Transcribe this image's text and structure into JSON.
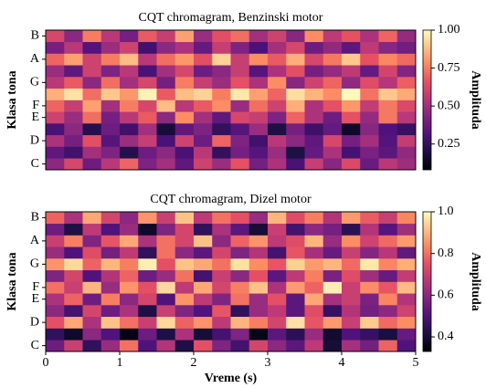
{
  "chart_data": [
    {
      "type": "heatmap",
      "title": "CQT chromagram, Benzinski motor",
      "ylabel": "Klasa tona",
      "colorbar_label": "Amplituda",
      "colormap": "magma",
      "categories": [
        "C",
        null,
        "D",
        null,
        "E",
        "F",
        null,
        "G",
        null,
        "A",
        null,
        "B"
      ],
      "xlim": [
        0,
        5
      ],
      "zlim": [
        0.08,
        1.0
      ],
      "zticks": [
        0.25,
        {
          "value": 0.5,
          "label": "0.50"
        },
        0.75,
        {
          "value": 1,
          "label": "1.00"
        }
      ],
      "z": [
        [
          0.45,
          0.62,
          0.38,
          0.55,
          0.7,
          0.42,
          0.5,
          0.35,
          0.6,
          0.48,
          0.66,
          0.4,
          0.52,
          0.3,
          0.58,
          0.44,
          0.63,
          0.37,
          0.55,
          0.49
        ],
        [
          0.35,
          0.28,
          0.5,
          0.42,
          0.22,
          0.38,
          0.45,
          0.3,
          0.55,
          0.25,
          0.4,
          0.33,
          0.48,
          0.2,
          0.36,
          0.52,
          0.29,
          0.41,
          0.34,
          0.46
        ],
        [
          0.52,
          0.4,
          0.65,
          0.33,
          0.48,
          0.58,
          0.3,
          0.6,
          0.38,
          0.7,
          0.42,
          0.28,
          0.55,
          0.45,
          0.35,
          0.62,
          0.4,
          0.5,
          0.32,
          0.57
        ],
        [
          0.3,
          0.45,
          0.22,
          0.38,
          0.28,
          0.5,
          0.18,
          0.35,
          0.42,
          0.25,
          0.33,
          0.48,
          0.2,
          0.4,
          0.27,
          0.36,
          0.15,
          0.44,
          0.31,
          0.26
        ],
        [
          0.6,
          0.48,
          0.72,
          0.4,
          0.55,
          0.68,
          0.45,
          0.78,
          0.5,
          0.35,
          0.62,
          0.58,
          0.42,
          0.7,
          0.52,
          0.38,
          0.66,
          0.47,
          0.74,
          0.55
        ],
        [
          0.7,
          0.58,
          0.82,
          0.5,
          0.75,
          0.62,
          0.88,
          0.55,
          0.68,
          0.78,
          0.48,
          0.72,
          0.6,
          0.85,
          0.52,
          0.66,
          0.8,
          0.57,
          0.74,
          0.63
        ],
        [
          0.85,
          0.95,
          0.72,
          0.9,
          0.8,
          0.98,
          0.68,
          0.88,
          0.92,
          0.75,
          0.96,
          0.82,
          0.7,
          0.94,
          0.86,
          0.78,
          0.99,
          0.73,
          0.9,
          0.84
        ],
        [
          0.55,
          0.68,
          0.45,
          0.72,
          0.5,
          0.62,
          0.4,
          0.75,
          0.58,
          0.48,
          0.66,
          0.52,
          0.78,
          0.44,
          0.6,
          0.7,
          0.46,
          0.64,
          0.54,
          0.69
        ],
        [
          0.48,
          0.35,
          0.6,
          0.42,
          0.55,
          0.3,
          0.5,
          0.62,
          0.38,
          0.45,
          0.58,
          0.33,
          0.52,
          0.65,
          0.4,
          0.47,
          0.56,
          0.36,
          0.61,
          0.43
        ],
        [
          0.7,
          0.82,
          0.6,
          0.75,
          0.88,
          0.55,
          0.72,
          0.8,
          0.65,
          0.92,
          0.58,
          0.78,
          0.68,
          0.85,
          0.62,
          0.74,
          0.9,
          0.66,
          0.77,
          0.71
        ],
        [
          0.4,
          0.55,
          0.32,
          0.48,
          0.6,
          0.28,
          0.45,
          0.52,
          0.36,
          0.58,
          0.42,
          0.3,
          0.5,
          0.62,
          0.38,
          0.46,
          0.34,
          0.56,
          0.44,
          0.39
        ],
        [
          0.62,
          0.45,
          0.75,
          0.55,
          0.4,
          0.68,
          0.58,
          0.82,
          0.48,
          0.65,
          0.72,
          0.5,
          0.6,
          0.44,
          0.78,
          0.56,
          0.66,
          0.52,
          0.7,
          0.47
        ]
      ]
    },
    {
      "type": "heatmap",
      "title": "CQT chromagram, Dizel motor",
      "ylabel": "Klasa tona",
      "xlabel": "Vreme (s)",
      "colorbar_label": "Amplituda",
      "colormap": "magma",
      "categories": [
        "C",
        null,
        "D",
        null,
        "E",
        "F",
        null,
        "G",
        null,
        "A",
        null,
        "B"
      ],
      "xlim": [
        0,
        5
      ],
      "xticks": [
        0,
        1,
        2,
        3,
        4,
        5
      ],
      "zlim": [
        0.33,
        1.0
      ],
      "zticks": [
        0.4,
        0.6,
        0.8,
        {
          "value": 1,
          "label": "1.0"
        }
      ],
      "z": [
        [
          0.55,
          0.7,
          0.45,
          0.62,
          0.8,
          0.5,
          0.66,
          0.42,
          0.75,
          0.58,
          0.48,
          0.72,
          0.6,
          0.52,
          0.68,
          0.4,
          0.64,
          0.56,
          0.78,
          0.5
        ],
        [
          0.45,
          0.38,
          0.6,
          0.5,
          0.35,
          0.55,
          0.42,
          0.65,
          0.4,
          0.48,
          0.58,
          0.36,
          0.52,
          0.44,
          0.62,
          0.39,
          0.5,
          0.46,
          0.41,
          0.54
        ],
        [
          0.75,
          0.88,
          0.65,
          0.92,
          0.8,
          0.7,
          0.95,
          0.78,
          0.85,
          0.68,
          0.9,
          0.82,
          0.72,
          0.96,
          0.76,
          0.86,
          0.7,
          0.93,
          0.79,
          0.84
        ],
        [
          0.6,
          0.48,
          0.72,
          0.55,
          0.65,
          0.42,
          0.7,
          0.58,
          0.5,
          0.76,
          0.45,
          0.62,
          0.68,
          0.52,
          0.74,
          0.46,
          0.66,
          0.56,
          0.6,
          0.71
        ],
        [
          0.65,
          0.78,
          0.55,
          0.82,
          0.6,
          0.72,
          0.5,
          0.85,
          0.68,
          0.58,
          0.8,
          0.62,
          0.75,
          0.52,
          0.88,
          0.64,
          0.7,
          0.57,
          0.83,
          0.66
        ],
        [
          0.8,
          0.7,
          0.9,
          0.62,
          0.85,
          0.75,
          0.95,
          0.68,
          0.88,
          0.72,
          0.82,
          0.92,
          0.65,
          0.86,
          0.78,
          0.98,
          0.7,
          0.84,
          0.76,
          0.91
        ],
        [
          0.58,
          0.72,
          0.5,
          0.66,
          0.78,
          0.55,
          0.62,
          0.8,
          0.48,
          0.7,
          0.6,
          0.75,
          0.52,
          0.68,
          0.82,
          0.57,
          0.74,
          0.63,
          0.54,
          0.69
        ],
        [
          0.85,
          0.95,
          0.78,
          0.9,
          0.82,
          0.98,
          0.75,
          0.92,
          0.88,
          0.8,
          0.96,
          0.84,
          0.76,
          0.94,
          0.86,
          0.9,
          0.79,
          0.97,
          0.83,
          0.89
        ],
        [
          0.62,
          0.5,
          0.74,
          0.56,
          0.68,
          0.45,
          0.8,
          0.6,
          0.52,
          0.72,
          0.58,
          0.66,
          0.48,
          0.76,
          0.64,
          0.54,
          0.7,
          0.59,
          0.67,
          0.53
        ],
        [
          0.7,
          0.82,
          0.58,
          0.76,
          0.88,
          0.65,
          0.8,
          0.72,
          0.92,
          0.6,
          0.78,
          0.85,
          0.68,
          0.74,
          0.9,
          0.62,
          0.84,
          0.71,
          0.79,
          0.86
        ],
        [
          0.55,
          0.42,
          0.68,
          0.5,
          0.62,
          0.38,
          0.58,
          0.72,
          0.45,
          0.65,
          0.52,
          0.4,
          0.7,
          0.48,
          0.6,
          0.56,
          0.44,
          0.66,
          0.51,
          0.63
        ],
        [
          0.78,
          0.65,
          0.88,
          0.72,
          0.6,
          0.85,
          0.7,
          0.92,
          0.68,
          0.8,
          0.75,
          0.62,
          0.9,
          0.74,
          0.82,
          0.66,
          0.86,
          0.77,
          0.7,
          0.83
        ]
      ]
    }
  ]
}
